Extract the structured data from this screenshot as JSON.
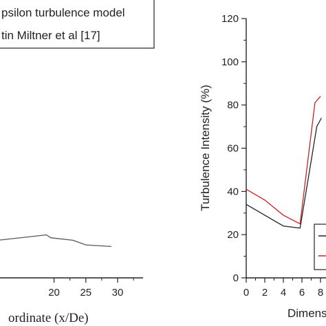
{
  "chart_data": [
    {
      "type": "line",
      "title": "",
      "xlabel": "ordinate (x/De)",
      "ylabel": "",
      "xlim": [
        11.5,
        34
      ],
      "ylim": [
        0,
        1
      ],
      "x_ticks": [
        "20",
        "25",
        "30"
      ],
      "x_tick_values": [
        20,
        25,
        30
      ],
      "grid": false,
      "legend": {
        "placement": "top",
        "entries": [
          "psilon turbulence model",
          "tin Miltner et al [17]"
        ],
        "colors": [
          "#222222",
          "#cc1f1f"
        ]
      },
      "series": [
        {
          "color": "#555555",
          "x": [
            11.5,
            18.8,
            19.5,
            23,
            25,
            29
          ],
          "y": [
            0.147,
            0.167,
            0.156,
            0.146,
            0.128,
            0.122
          ]
        }
      ]
    },
    {
      "type": "line",
      "title": "",
      "xlabel": "Dimens",
      "ylabel": "Turbulence Intensity (%)",
      "xlim": [
        0,
        10
      ],
      "ylim": [
        0,
        120
      ],
      "x_ticks": [
        "0",
        "2",
        "4",
        "6",
        "8"
      ],
      "x_tick_values": [
        0,
        2,
        4,
        6,
        8
      ],
      "y_ticks": [
        "0",
        "20",
        "40",
        "60",
        "80",
        "100",
        "120"
      ],
      "y_tick_values": [
        0,
        20,
        40,
        60,
        80,
        100,
        120
      ],
      "grid": false,
      "legend": {
        "placement": "bottom-right",
        "colors": [
          "#222222",
          "#cc1f1f"
        ]
      },
      "series": [
        {
          "color": "#222222",
          "x": [
            0,
            2,
            4,
            5.8,
            7.6,
            8.1
          ],
          "y": [
            34,
            29,
            24,
            23,
            70,
            74
          ]
        },
        {
          "color": "#cc1f1f",
          "x": [
            0,
            2,
            4,
            5.8,
            7.4,
            8.0
          ],
          "y": [
            41,
            36,
            29,
            25,
            81,
            84
          ]
        }
      ]
    }
  ]
}
